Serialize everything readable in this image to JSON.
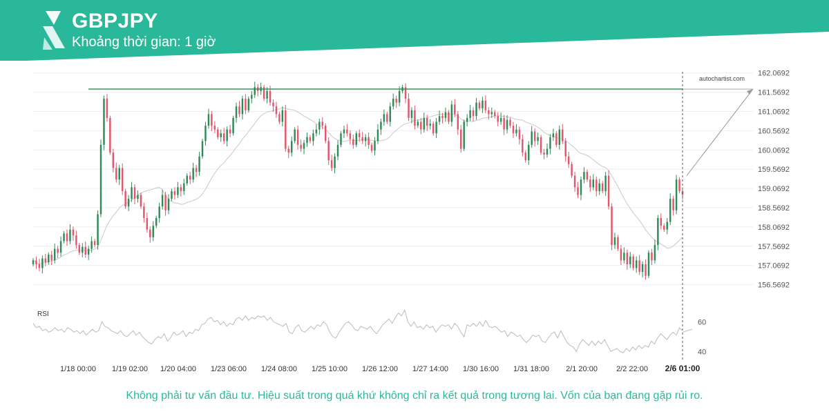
{
  "header": {
    "symbol": "GBPJPY",
    "timeframe": "Khoảng thời gian: 1 giờ",
    "brand_color": "#2ab89a",
    "logo_icon": "autochartist-logo-icon"
  },
  "watermark": "autochartist.com",
  "disclaimer": "Không phải tư vấn đầu tư. Hiệu suất trong quá khứ không chỉ ra kết quả trong tương lai. Vốn của bạn đang gặp rủi ro.",
  "chart_data": [
    {
      "type": "candlestick",
      "title": "GBPJPY",
      "timeframe": "1 giờ",
      "y_ticks": [
        "162.0692",
        "161.5692",
        "161.0692",
        "160.5692",
        "160.0692",
        "159.5692",
        "159.0692",
        "158.5692",
        "158.0692",
        "157.5692",
        "157.0692",
        "156.5692"
      ],
      "ylim": [
        156.4,
        162.1
      ],
      "x_ticks": [
        "1/18 00:00",
        "1/19 02:00",
        "1/20 04:00",
        "1/23 06:00",
        "1/24 08:00",
        "1/25 10:00",
        "1/26 12:00",
        "1/27 14:00",
        "1/30 16:00",
        "1/31 18:00",
        "2/1 20:00",
        "2/2 22:00",
        "2/6 01:00"
      ],
      "resistance_level": 161.65,
      "projection": {
        "from": 159.4,
        "to": 161.65
      },
      "up_color": "#2e8b57",
      "down_color": "#e0566a",
      "ma_color": "#c8c8c8",
      "closes": [
        157.2,
        157.1,
        157.0,
        157.25,
        157.15,
        157.35,
        157.2,
        157.5,
        157.4,
        157.7,
        157.9,
        157.7,
        158.0,
        157.85,
        157.6,
        157.4,
        157.55,
        157.35,
        157.5,
        157.7,
        157.6,
        158.4,
        160.2,
        161.4,
        160.9,
        160.0,
        159.6,
        159.3,
        159.6,
        159.0,
        158.6,
        158.8,
        159.1,
        158.8,
        158.9,
        158.6,
        158.3,
        158.0,
        157.8,
        158.1,
        158.3,
        158.6,
        158.9,
        158.5,
        158.8,
        159.0,
        158.9,
        159.1,
        159.0,
        159.2,
        159.4,
        159.3,
        159.6,
        159.5,
        159.9,
        160.3,
        160.7,
        161.0,
        160.7,
        160.6,
        160.4,
        160.5,
        160.3,
        160.6,
        160.5,
        160.9,
        161.2,
        161.0,
        161.4,
        161.1,
        161.4,
        161.5,
        161.7,
        161.6,
        161.7,
        161.4,
        161.6,
        161.3,
        161.2,
        161.0,
        160.8,
        161.1,
        160.1,
        160.0,
        160.3,
        160.6,
        160.2,
        160.1,
        160.25,
        160.4,
        160.3,
        160.5,
        160.6,
        160.8,
        160.7,
        160.3,
        159.8,
        159.6,
        159.9,
        160.2,
        160.5,
        160.6,
        160.5,
        160.35,
        160.2,
        160.5,
        160.4,
        160.3,
        160.4,
        160.2,
        160.05,
        160.3,
        160.6,
        160.8,
        161.0,
        160.8,
        161.2,
        161.4,
        161.3,
        161.6,
        161.7,
        161.4,
        160.9,
        161.1,
        160.7,
        160.8,
        160.6,
        160.9,
        160.7,
        160.75,
        160.5,
        160.8,
        160.95,
        160.9,
        161.05,
        160.8,
        161.25,
        161.0,
        160.6,
        160.1,
        160.8,
        160.9,
        161.1,
        160.95,
        161.3,
        161.15,
        161.35,
        161.1,
        161.0,
        161.05,
        160.95,
        160.8,
        160.9,
        160.6,
        160.85,
        160.7,
        160.5,
        160.6,
        160.35,
        160.0,
        159.8,
        160.2,
        160.55,
        160.3,
        160.4,
        160.0,
        159.95,
        160.1,
        160.4,
        160.5,
        160.2,
        160.6,
        160.3,
        159.9,
        159.7,
        159.4,
        159.1,
        158.9,
        159.3,
        159.5,
        159.3,
        159.1,
        159.3,
        159.0,
        159.2,
        159.0,
        159.4,
        158.6,
        157.6,
        157.8,
        157.5,
        157.2,
        157.4,
        157.1,
        157.3,
        157.0,
        157.2,
        156.9,
        157.1,
        156.8,
        157.4,
        157.2,
        157.6,
        158.3,
        158.1,
        158.0,
        158.2,
        158.8,
        158.5,
        159.3,
        159.0,
        158.9
      ]
    },
    {
      "type": "line",
      "title": "RSI",
      "y_ticks": [
        "60",
        "40"
      ],
      "ylim": [
        35,
        70
      ],
      "values": [
        59,
        56,
        57,
        54,
        55,
        53,
        54,
        56,
        54,
        55,
        53,
        56,
        55,
        53,
        54,
        52,
        54,
        51,
        53,
        55,
        53,
        54,
        60,
        57,
        56,
        54,
        53,
        52,
        54,
        51,
        50,
        52,
        54,
        51,
        53,
        50,
        48,
        46,
        45,
        48,
        50,
        49,
        52,
        47,
        49,
        53,
        51,
        52,
        54,
        50,
        53,
        52,
        55,
        54,
        58,
        59,
        62,
        63,
        60,
        61,
        58,
        60,
        57,
        59,
        58,
        62,
        63,
        61,
        64,
        61,
        63,
        62,
        64,
        63,
        64,
        61,
        63,
        60,
        59,
        58,
        57,
        59,
        53,
        52,
        56,
        58,
        54,
        53,
        55,
        57,
        55,
        58,
        57,
        60,
        58,
        53,
        50,
        49,
        53,
        56,
        59,
        60,
        58,
        55,
        54,
        57,
        56,
        55,
        57,
        54,
        52,
        55,
        58,
        60,
        62,
        59,
        63,
        66,
        64,
        68,
        60,
        57,
        60,
        56,
        57,
        55,
        58,
        56,
        57,
        53,
        56,
        58,
        57,
        58,
        55,
        59,
        57,
        53,
        50,
        58,
        57,
        59,
        57,
        60,
        57,
        61,
        57,
        56,
        57,
        55,
        53,
        54,
        50,
        53,
        52,
        50,
        51,
        48,
        46,
        48,
        51,
        50,
        51,
        47,
        46,
        49,
        52,
        53,
        49,
        54,
        50,
        46,
        44,
        43,
        40,
        45,
        48,
        46,
        44,
        47,
        44,
        47,
        45,
        48,
        44,
        40,
        41,
        42,
        40,
        39,
        42,
        40,
        43,
        41,
        44,
        42,
        44,
        43,
        47,
        45,
        49,
        52,
        50,
        48,
        51,
        53,
        51,
        56,
        54
      ]
    }
  ]
}
